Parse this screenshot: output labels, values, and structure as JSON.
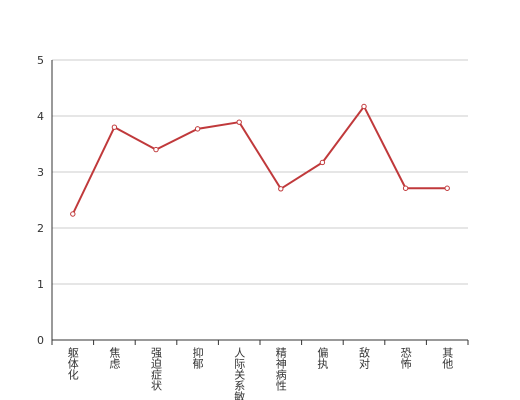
{
  "chart_data": {
    "type": "line",
    "categories": [
      "躯体化",
      "焦虑",
      "强迫症状",
      "抑郁",
      "人际关系敏感",
      "精神病性",
      "偏执",
      "敌对",
      "恐怖",
      "其他"
    ],
    "series": [
      {
        "color": "#c0393b",
        "values": [
          2.25,
          3.8,
          3.4,
          3.77,
          3.89,
          2.7,
          3.17,
          4.17,
          2.71,
          2.71
        ]
      }
    ],
    "ylim": [
      0,
      5
    ],
    "yticks": [
      0,
      1,
      2,
      3,
      4,
      5
    ],
    "grid": true
  }
}
